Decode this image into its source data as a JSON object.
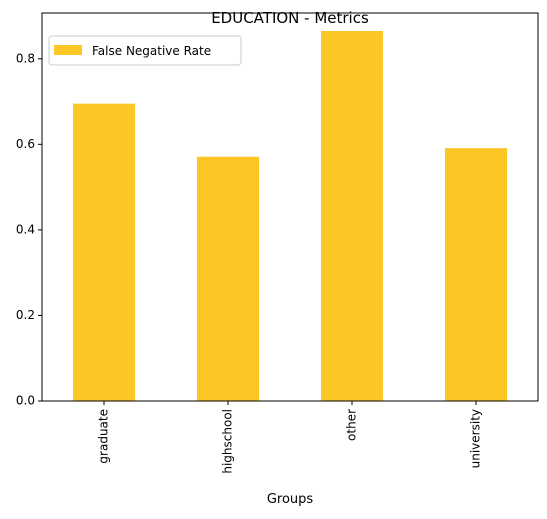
{
  "chart_data": {
    "type": "bar",
    "title": "EDUCATION - Metrics",
    "xlabel": "Groups",
    "ylabel": "",
    "categories": [
      "graduate",
      "highschool",
      "other",
      "university"
    ],
    "series": [
      {
        "name": "False Negative Rate",
        "values": [
          0.695,
          0.571,
          0.865,
          0.591
        ],
        "color": "#fcc624"
      }
    ],
    "ylim": [
      0,
      0.907
    ],
    "yticks": [
      0.0,
      0.2,
      0.4,
      0.6,
      0.8
    ],
    "ytick_labels": [
      "0.0",
      "0.2",
      "0.4",
      "0.6",
      "0.8"
    ],
    "grid": false,
    "legend_position": "top-left"
  }
}
